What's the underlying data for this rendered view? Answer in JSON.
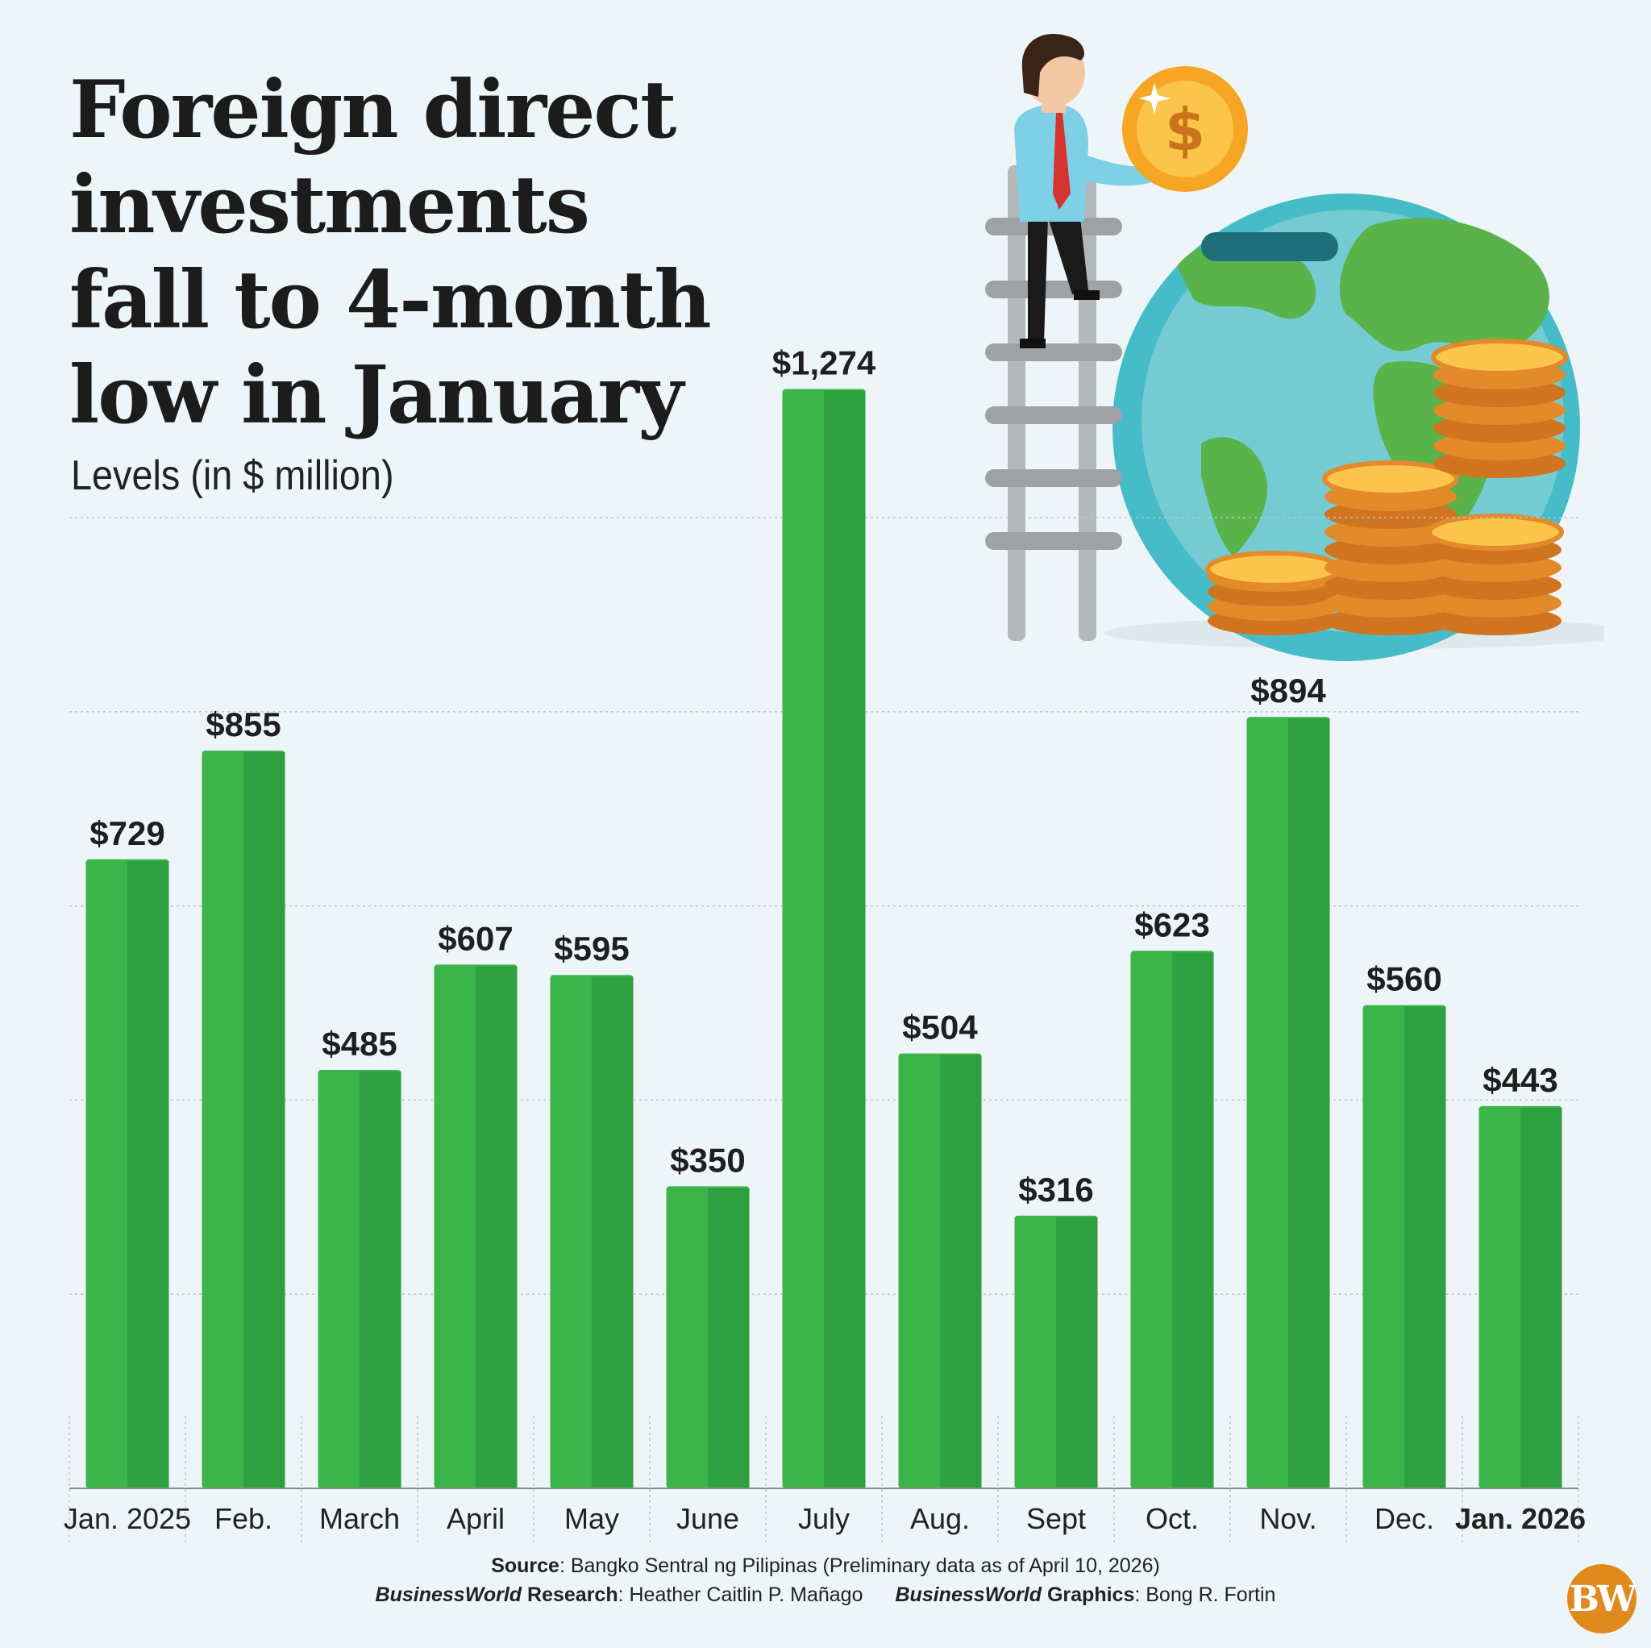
{
  "header": {
    "title": "Foreign direct\ninvestments\nfall to 4-month\nlow in January",
    "subtitle": "Levels (in $ million)"
  },
  "chart_data": {
    "type": "bar",
    "title": "Foreign direct investments fall to 4-month low in January",
    "subtitle": "Levels (in $ million)",
    "categories": [
      "Jan. 2025",
      "Feb.",
      "March",
      "April",
      "May",
      "June",
      "July",
      "Aug.",
      "Sept",
      "Oct.",
      "Nov.",
      "Dec.",
      "Jan. 2026"
    ],
    "values": [
      729,
      855,
      485,
      607,
      595,
      350,
      1274,
      504,
      316,
      623,
      894,
      560,
      443
    ],
    "value_labels": [
      "$729",
      "$855",
      "$485",
      "$607",
      "$595",
      "$350",
      "$1,274",
      "$504",
      "$316",
      "$623",
      "$894",
      "$560",
      "$443"
    ],
    "highlight_category": "Jan. 2026",
    "ylim": [
      0,
      1125
    ],
    "grid_step": 225,
    "grid": true,
    "legend": "none",
    "colors": {
      "bar_light": "#3bb54a",
      "bar_dark": "#2ea03f",
      "grid": "#b9c4c9",
      "axis": "#8a8a8a"
    }
  },
  "footer": {
    "source_label": "Source",
    "source_text": ": Bangko Sentral ng Pilipinas (Preliminary data as of April 10, 2026)",
    "research_brand": "BusinessWorld",
    "research_label": " Research",
    "research_text": ": Heather Caitlin P. Mañago",
    "graphics_brand": "BusinessWorld",
    "graphics_label": " Graphics",
    "graphics_text": ": Bong R. Fortin",
    "logo_text": "BW"
  },
  "illustration": {
    "icons": [
      "globe-icon",
      "ladder-icon",
      "businessman-icon",
      "dollar-coin-icon",
      "coin-stack-icon"
    ]
  }
}
